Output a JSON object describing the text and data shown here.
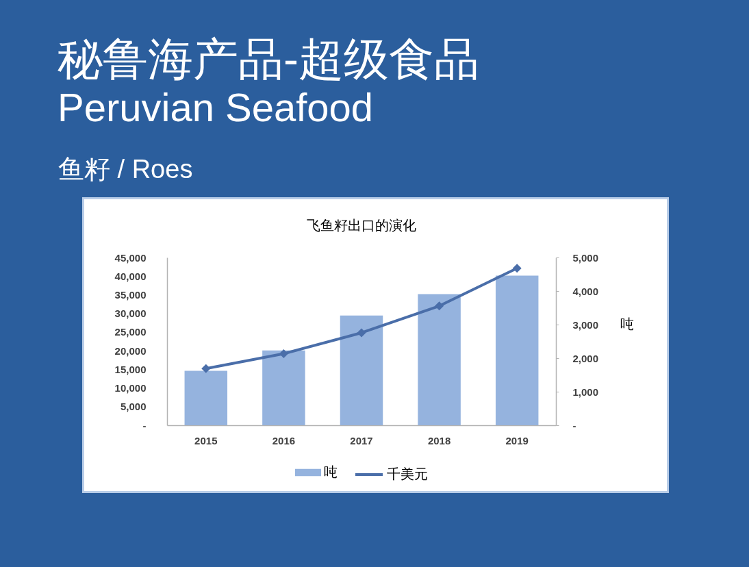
{
  "chart_data": {
    "type": "bar",
    "title": "飞鱼籽出口的演化",
    "annotations": [
      "秘鲁海产品-超级食品",
      "Peruvian Seafood",
      "鱼籽 / Roes"
    ],
    "categories": [
      "2015",
      "2016",
      "2017",
      "2018",
      "2019"
    ],
    "series": [
      {
        "name": "吨",
        "axis": "y2",
        "color": "#95b3de",
        "values": [
          1620,
          2230,
          3270,
          3910,
          4460
        ]
      },
      {
        "name": "千美元",
        "type": "line",
        "color": "#4a6ea9",
        "values": [
          15200,
          19200,
          24800,
          32000,
          42100
        ]
      }
    ],
    "ylim": [
      0,
      45000
    ],
    "yticks": [
      {
        "value": 0,
        "label": "-"
      },
      {
        "value": 5000,
        "label": "5,000"
      },
      {
        "value": 10000,
        "label": "10,000"
      },
      {
        "value": 15000,
        "label": "15,000"
      },
      {
        "value": 20000,
        "label": "20,000"
      },
      {
        "value": 25000,
        "label": "25,000"
      },
      {
        "value": 30000,
        "label": "30,000"
      },
      {
        "value": 35000,
        "label": "35,000"
      },
      {
        "value": 40000,
        "label": "40,000"
      },
      {
        "value": 45000,
        "label": "45,000"
      }
    ],
    "y2lim": [
      0,
      5000
    ],
    "y2ticks": [
      {
        "value": 0,
        "label": "-"
      },
      {
        "value": 1000,
        "label": "1,000"
      },
      {
        "value": 2000,
        "label": "2,000"
      },
      {
        "value": 3000,
        "label": "3,000"
      },
      {
        "value": 4000,
        "label": "4,000"
      },
      {
        "value": 5000,
        "label": "5,000"
      }
    ],
    "y2label": "吨",
    "legend": "bottom",
    "marker": "diamond",
    "grid": false
  }
}
